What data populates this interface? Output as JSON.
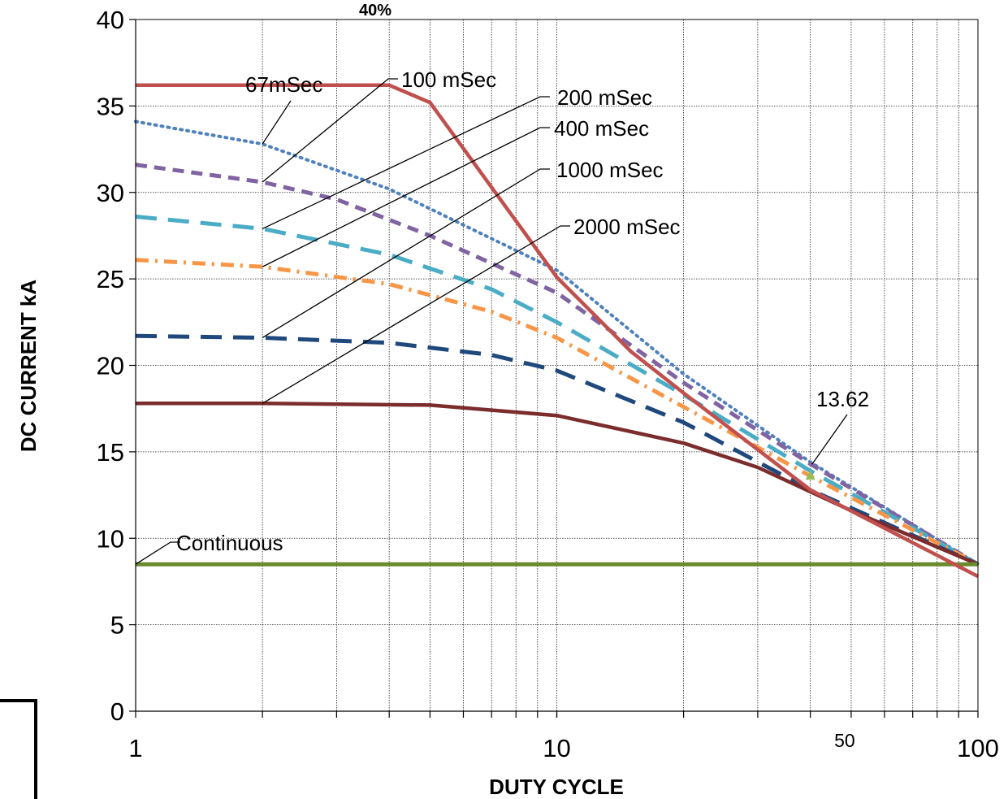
{
  "chart_data": {
    "type": "line",
    "title": "",
    "top_note": "40%",
    "xlabel": "DUTY CYCLE",
    "ylabel": "DC CURRENT kA",
    "x_scale": "log",
    "xlim": [
      1,
      100
    ],
    "ylim": [
      0,
      40
    ],
    "grid": true,
    "x_tick_labels": [
      {
        "value": 1,
        "label": "1"
      },
      {
        "value": 10,
        "label": "10"
      },
      {
        "value": 50,
        "label": "50"
      },
      {
        "value": 100,
        "label": "100"
      }
    ],
    "y_ticks": [
      0,
      5,
      10,
      15,
      20,
      25,
      30,
      35,
      40
    ],
    "series": [
      {
        "name": "67mSec",
        "color": "#4f81bd",
        "dash": "dotted",
        "points": [
          [
            1,
            34.1
          ],
          [
            2,
            32.8
          ],
          [
            4,
            30.2
          ],
          [
            10,
            25.5
          ],
          [
            20,
            19.5
          ],
          [
            40,
            14.4
          ],
          [
            100,
            8.5
          ]
        ]
      },
      {
        "name": "100 mSec",
        "color": "#8064a2",
        "dash": "dashed",
        "points": [
          [
            1,
            31.6
          ],
          [
            2,
            30.6
          ],
          [
            3,
            29.6
          ],
          [
            5,
            27.5
          ],
          [
            10,
            24.2
          ],
          [
            20,
            19.0
          ],
          [
            40,
            14.3
          ],
          [
            100,
            8.5
          ]
        ]
      },
      {
        "name": "200 mSec",
        "color": "#4bacc6",
        "dash": "long-dash",
        "points": [
          [
            1,
            28.6
          ],
          [
            2,
            27.9
          ],
          [
            4,
            26.4
          ],
          [
            7,
            24.4
          ],
          [
            10,
            22.5
          ],
          [
            20,
            18.3
          ],
          [
            40,
            13.9
          ],
          [
            100,
            8.5
          ]
        ]
      },
      {
        "name": "400 mSec",
        "color": "#f79646",
        "dash": "dash-dot",
        "points": [
          [
            1,
            26.1
          ],
          [
            2,
            25.7
          ],
          [
            4,
            24.7
          ],
          [
            7,
            23.1
          ],
          [
            10,
            21.6
          ],
          [
            20,
            17.6
          ],
          [
            40,
            13.6
          ],
          [
            100,
            8.5
          ]
        ]
      },
      {
        "name": "1000 mSec",
        "color": "#1f497d",
        "dash": "long-dash",
        "points": [
          [
            1,
            21.7
          ],
          [
            2,
            21.6
          ],
          [
            4,
            21.3
          ],
          [
            7,
            20.6
          ],
          [
            10,
            19.7
          ],
          [
            20,
            16.7
          ],
          [
            40,
            12.8
          ],
          [
            100,
            8.5
          ]
        ]
      },
      {
        "name": "2000 mSec",
        "color": "#7b2c2c",
        "dash": "solid",
        "points": [
          [
            1,
            17.8
          ],
          [
            2,
            17.8
          ],
          [
            5,
            17.7
          ],
          [
            10,
            17.1
          ],
          [
            20,
            15.5
          ],
          [
            30,
            14.1
          ],
          [
            50,
            11.6
          ],
          [
            100,
            8.5
          ]
        ]
      },
      {
        "name": "Continuous",
        "color": "#6a8a2e",
        "dash": "solid",
        "points": [
          [
            1,
            8.5
          ],
          [
            100,
            8.5
          ]
        ]
      },
      {
        "name": "",
        "color": "#c0504d",
        "dash": "solid",
        "points": [
          [
            1,
            36.2
          ],
          [
            4,
            36.2
          ],
          [
            5,
            35.2
          ],
          [
            10,
            25.1
          ],
          [
            15,
            20.8
          ],
          [
            20,
            18.4
          ],
          [
            40,
            12.8
          ],
          [
            100,
            7.8
          ]
        ]
      }
    ],
    "annotations": [
      {
        "text": "67mSec",
        "target": [
          2,
          32.8
        ]
      },
      {
        "text": "100 mSec",
        "target": [
          2,
          30.6
        ]
      },
      {
        "text": "200 mSec",
        "target": [
          2,
          27.9
        ]
      },
      {
        "text": "400 mSec",
        "target": [
          2,
          25.7
        ]
      },
      {
        "text": "1000 mSec",
        "target": [
          2,
          21.6
        ]
      },
      {
        "text": "2000 mSec",
        "target": [
          2,
          17.8
        ]
      },
      {
        "text": "Continuous",
        "target": [
          1,
          8.5
        ]
      },
      {
        "text": "13.62",
        "target": [
          40,
          13.62
        ]
      }
    ],
    "highlight_point": {
      "x": 40,
      "y": 13.62,
      "color": "#9bbb59"
    }
  }
}
